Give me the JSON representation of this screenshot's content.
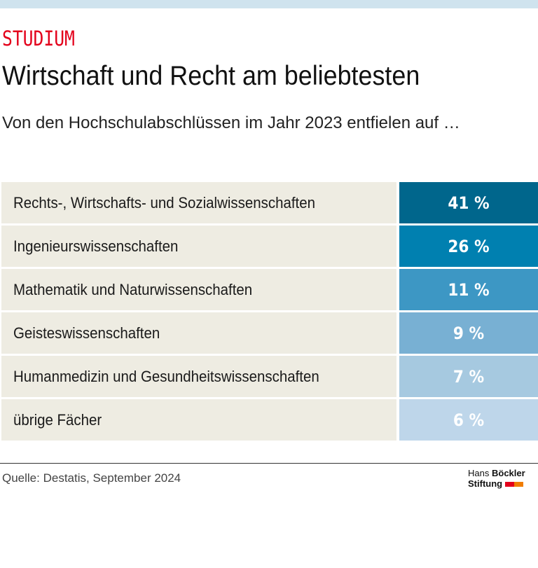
{
  "kicker": "STUDIUM",
  "headline": "Wirtschaft und Recht am beliebtesten",
  "subtitle": "Von den Hochschulabschlüssen im Jahr 2023 entfielen auf …",
  "chart_data": {
    "type": "table",
    "categories": [
      "Rechts-, Wirtschafts- und Sozialwissenschaften",
      "Ingenieurswissenschaften",
      "Mathematik und Naturwissenschaften",
      "Geisteswissenschaften",
      "Humanmedizin und Gesundheitswissenschaften",
      "übrige Fächer"
    ],
    "values": [
      41,
      26,
      11,
      9,
      7,
      6
    ],
    "value_labels": [
      "41 %",
      "26 %",
      "11 %",
      "9 %",
      "7 %",
      "6 %"
    ],
    "unit": "%",
    "colors": [
      "#00668c",
      "#0080b0",
      "#3d97c4",
      "#78b0d3",
      "#a6c9e0",
      "#bed6ea"
    ]
  },
  "source": "Quelle: Destatis, September 2024",
  "logo": {
    "line1_light": "Hans",
    "line1_bold": "Böckler",
    "line2": "Stiftung",
    "colors": [
      "#e3001b",
      "#f07d00"
    ]
  }
}
